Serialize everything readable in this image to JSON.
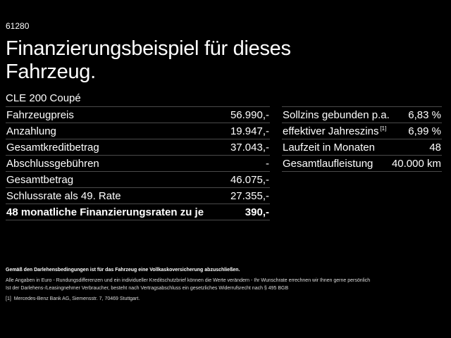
{
  "code": "61280",
  "title": "Finanzierungsbeispiel für dieses Fahrzeug.",
  "model": "CLE 200 Coupé",
  "left_rows": [
    {
      "label": "Fahrzeugpreis",
      "value": "56.990,-"
    },
    {
      "label": "Anzahlung",
      "value": "19.947,-"
    },
    {
      "label": "Gesamtkreditbetrag",
      "value": "37.043,-"
    },
    {
      "label": "Abschlussgebühren",
      "value": "-"
    },
    {
      "label": "Gesamtbetrag",
      "value": "46.075,-"
    },
    {
      "label": "Schlussrate als 49. Rate",
      "value": "27.355,-"
    },
    {
      "label": "48 monatliche Finanzierungsraten zu je",
      "value": "390,-"
    }
  ],
  "right_rows": [
    {
      "label": "Sollzins gebunden p.a.",
      "value": "6,83 %"
    },
    {
      "label": "effektiver Jahreszins",
      "sup": "[1]",
      "value": "6,99 %"
    },
    {
      "label": "Laufzeit in Monaten",
      "value": "48"
    },
    {
      "label": "Gesamtlaufleistung",
      "value": "40.000 km"
    }
  ],
  "footnotes": {
    "insurance": "Gemäß den Darlehensbedingungen ist für das Fahrzeug eine Vollkaskoversicherung abzuschließen.",
    "line1": "Alle Angaben in Euro - Rundungsdifferenzen und ein individueller Kreditschutzbrief können die Werte verändern - Ihr Wunschrate errechnen wir Ihnen gerne persönlich",
    "line2": "Ist der Darlehens-/Leasingnehmer Verbraucher, besteht nach Vertragsabschluss ein gesetzliches Widerrufsrecht nach § 495 BGB",
    "ref_mark": "[1]",
    "ref_text": "Mercedes-Benz Bank AG, Siemensstr. 7, 70469 Stuttgart."
  }
}
